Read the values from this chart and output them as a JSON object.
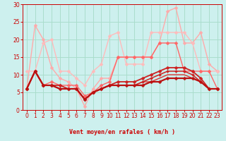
{
  "background_color": "#cdf0ee",
  "grid_color": "#aaddcc",
  "xlabel": "Vent moyen/en rafales ( km/h )",
  "xlim": [
    -0.5,
    23.5
  ],
  "ylim": [
    0,
    30
  ],
  "yticks": [
    0,
    5,
    10,
    15,
    20,
    25,
    30
  ],
  "xticks": [
    0,
    1,
    2,
    3,
    4,
    5,
    6,
    7,
    8,
    9,
    10,
    11,
    12,
    13,
    14,
    15,
    16,
    17,
    18,
    19,
    20,
    21,
    22,
    23
  ],
  "series": [
    {
      "x": [
        0,
        1,
        2,
        3,
        4,
        5,
        6,
        7,
        8,
        9,
        10,
        11,
        12,
        13,
        14,
        15,
        16,
        17,
        18,
        19,
        20,
        21,
        22,
        23
      ],
      "y": [
        6,
        24,
        20,
        12,
        9,
        8,
        6,
        1,
        6,
        9,
        9,
        15,
        15,
        15,
        15,
        15,
        19,
        28,
        29,
        19,
        19,
        22,
        13,
        11
      ],
      "color": "#ffaaaa",
      "lw": 1.0,
      "marker": "D",
      "markersize": 2.5,
      "zorder": 3
    },
    {
      "x": [
        0,
        1,
        2,
        3,
        4,
        5,
        6,
        7,
        8,
        9,
        10,
        11,
        12,
        13,
        14,
        15,
        16,
        17,
        18,
        19,
        20,
        21,
        22,
        23
      ],
      "y": [
        11,
        11,
        19,
        20,
        11,
        11,
        9,
        7,
        11,
        13,
        21,
        22,
        13,
        13,
        13,
        22,
        22,
        22,
        22,
        22,
        19,
        11,
        11,
        11
      ],
      "color": "#ffbbbb",
      "lw": 1.0,
      "marker": "D",
      "markersize": 2.5,
      "zorder": 3
    },
    {
      "x": [
        0,
        1,
        2,
        3,
        4,
        5,
        6,
        7,
        8,
        9,
        10,
        11,
        12,
        13,
        14,
        15,
        16,
        17,
        18,
        19,
        20,
        21,
        22,
        23
      ],
      "y": [
        6,
        11,
        7,
        8,
        7,
        7,
        7,
        4,
        5,
        7,
        8,
        15,
        15,
        15,
        15,
        15,
        19,
        19,
        19,
        11,
        11,
        11,
        11,
        6
      ],
      "color": "#ff6666",
      "lw": 1.0,
      "marker": "D",
      "markersize": 2.5,
      "zorder": 4
    },
    {
      "x": [
        0,
        1,
        2,
        3,
        4,
        5,
        6,
        7,
        8,
        9,
        10,
        11,
        12,
        13,
        14,
        15,
        16,
        17,
        18,
        19,
        20,
        21,
        22,
        23
      ],
      "y": [
        6,
        11,
        7,
        7,
        7,
        6,
        6,
        3,
        5,
        6,
        7,
        8,
        8,
        8,
        9,
        10,
        11,
        12,
        12,
        12,
        11,
        9,
        6,
        6
      ],
      "color": "#cc2222",
      "lw": 1.3,
      "marker": "D",
      "markersize": 2.5,
      "zorder": 5
    },
    {
      "x": [
        0,
        1,
        2,
        3,
        4,
        5,
        6,
        7,
        8,
        9,
        10,
        11,
        12,
        13,
        14,
        15,
        16,
        17,
        18,
        19,
        20,
        21,
        22,
        23
      ],
      "y": [
        6,
        11,
        7,
        7,
        6,
        6,
        6,
        3,
        5,
        6,
        7,
        7,
        7,
        7,
        8,
        9,
        10,
        11,
        11,
        11,
        10,
        8,
        6,
        6
      ],
      "color": "#cc2222",
      "lw": 1.1,
      "marker": "D",
      "markersize": 2.0,
      "zorder": 5
    },
    {
      "x": [
        0,
        1,
        2,
        3,
        4,
        5,
        6,
        7,
        8,
        9,
        10,
        11,
        12,
        13,
        14,
        15,
        16,
        17,
        18,
        19,
        20,
        21,
        22,
        23
      ],
      "y": [
        6,
        11,
        7,
        7,
        6,
        6,
        6,
        3,
        5,
        6,
        7,
        7,
        7,
        7,
        8,
        8,
        9,
        10,
        10,
        10,
        9,
        8,
        6,
        6
      ],
      "color": "#dd3333",
      "lw": 1.0,
      "marker": null,
      "markersize": 0,
      "zorder": 4
    },
    {
      "x": [
        0,
        1,
        2,
        3,
        4,
        5,
        6,
        7,
        8,
        9,
        10,
        11,
        12,
        13,
        14,
        15,
        16,
        17,
        18,
        19,
        20,
        21,
        22,
        23
      ],
      "y": [
        6,
        11,
        7,
        7,
        6,
        6,
        6,
        3,
        5,
        6,
        7,
        7,
        7,
        7,
        7,
        8,
        8,
        9,
        9,
        9,
        9,
        8,
        6,
        6
      ],
      "color": "#bb1111",
      "lw": 1.6,
      "marker": "D",
      "markersize": 2.5,
      "zorder": 6
    }
  ],
  "wind_symbols": {
    "x": [
      0,
      1,
      2,
      3,
      4,
      5,
      6,
      7,
      8,
      9,
      10,
      11,
      12,
      13,
      14,
      15,
      16,
      17,
      18,
      19,
      20,
      21,
      22,
      23
    ],
    "syms": [
      "→",
      "↘",
      "↘",
      "↘",
      "→",
      "↘",
      "↘",
      "↓",
      "↙",
      "↙",
      "↓",
      "↙",
      "↙",
      "↓",
      "↓",
      "↓",
      "↓",
      "↓",
      "↓",
      "↓",
      "↓",
      "↓",
      "↓",
      "↓"
    ]
  }
}
